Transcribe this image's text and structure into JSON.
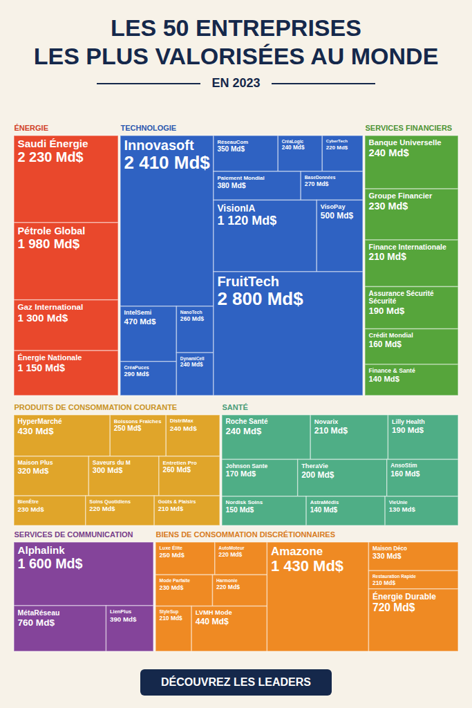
{
  "chart_data": {
    "type": "treemap",
    "title": "LES 50 ENTREPRISES LES PLUS VALORISÉES AU MONDE",
    "subtitle": "EN 2023",
    "caption": "DÉCOUVREZ LES LEADERS",
    "data_labels": true,
    "groups": [
      {
        "name": "ÉNERGIE",
        "color": "#e9482c",
        "categories": [
          "Saudi Énergie",
          "Pétrole Global",
          "Gaz International",
          "Énergie Nationale"
        ],
        "values": [
          2230,
          1980,
          1300,
          1150
        ],
        "value_labels": [
          "2 230 Md$",
          "1 980 Md$",
          "1 300 Md$",
          "1 150 Md$"
        ]
      },
      {
        "name": "TECHNOLOGIE",
        "color": "#2f62c2",
        "categories": [
          "Innovasoft",
          "RéseauCom",
          "CréaLogic",
          "CyberTech",
          "Paiement Mondial",
          "BaseDonnées",
          "VisionIA",
          "VisoPay",
          "IntelSemi",
          "CréaPuces",
          "NanoTech",
          "DynamiCell",
          "FruitTech"
        ],
        "values": [
          2410,
          350,
          240,
          220,
          380,
          270,
          1120,
          500,
          470,
          290,
          260,
          240,
          2800
        ],
        "value_labels": [
          "2 410 Md$",
          "350 Md$",
          "240 Md$",
          "220 Md$",
          "380 Md$",
          "270 Md$",
          "1 120 Md$",
          "500 Md$",
          "470 Md$",
          "290 Md$",
          "260 Md$",
          "240 Md$",
          "2 800 Md$"
        ]
      },
      {
        "name": "SERVICES FINANCIERS",
        "color": "#56a53b",
        "categories": [
          "Banque Universelle",
          "Groupe Financier",
          "Finance Internationale",
          "Assurance Sécurité Sécurité",
          "Crédit Mondial",
          "Finance & Santé"
        ],
        "values": [
          240,
          230,
          210,
          190,
          160,
          140
        ],
        "value_labels": [
          "240 Md$",
          "230 Md$",
          "210 Md$",
          "190 Md$",
          "160 Md$",
          "140 Md$"
        ]
      },
      {
        "name": "PRODUITS DE CONSOMMATION COURANTE",
        "color": "#e0a52a",
        "categories": [
          "HyperMarché",
          "Boissons Fraîches",
          "DistriMax",
          "Maison Plus",
          "Saveurs du M",
          "Entretien Pro",
          "BienÊtre",
          "Soins Quotidiens",
          "Goûts & Plaisirs"
        ],
        "values": [
          430,
          250,
          240,
          320,
          300,
          260,
          230,
          220,
          210
        ],
        "value_labels": [
          "430 Md$",
          "250 Md$",
          "240 Md$",
          "320 Md$",
          "300 Md$",
          "260 Md$",
          "230 Md$",
          "220 Md$",
          "210 Md$"
        ]
      },
      {
        "name": "SANTÉ",
        "color": "#4fae86",
        "categories": [
          "Roche Santé",
          "Novarix",
          "Lilly Health",
          "Johnson Sante",
          "TheraVie",
          "AnsoStim",
          "Nordisk Soins",
          "AstraMédis",
          "VieUnie"
        ],
        "values": [
          240,
          210,
          190,
          170,
          200,
          160,
          150,
          140,
          130
        ],
        "value_labels": [
          "240 Md$",
          "210 Md$",
          "190 Md$",
          "170 Md$",
          "200 Md$",
          "160 Md$",
          "150 Md$",
          "140 Md$",
          "130 Md$"
        ]
      },
      {
        "name": "SERVICES DE COMMUNICATION",
        "color": "#84449a",
        "categories": [
          "Alphalink",
          "MétaRéseau",
          "LienPlus"
        ],
        "values": [
          1600,
          760,
          390
        ],
        "value_labels": [
          "1 600 Md$",
          "760 Md$",
          "390 Md$"
        ]
      },
      {
        "name": "BIENS DE CONSOMMATION DISCRÉTIONNAIRES",
        "color": "#ef8a23",
        "categories": [
          "Luxe Élite",
          "AutoMoteur",
          "Mode Parfaite",
          "Harmonie",
          "StyleSup",
          "LVMH Mode",
          "Amazone",
          "Maison Déco",
          "Restauration Rapide",
          "Énergie Durable"
        ],
        "values": [
          250,
          220,
          230,
          220,
          210,
          440,
          1430,
          330,
          210,
          720
        ],
        "value_labels": [
          "250 Md$",
          "220 Md$",
          "230 Md$",
          "220 Md$",
          "210 Md$",
          "440 Md$",
          "1 430 Md$",
          "330 Md$",
          "210 Md$",
          "720 Md$"
        ]
      }
    ]
  }
}
